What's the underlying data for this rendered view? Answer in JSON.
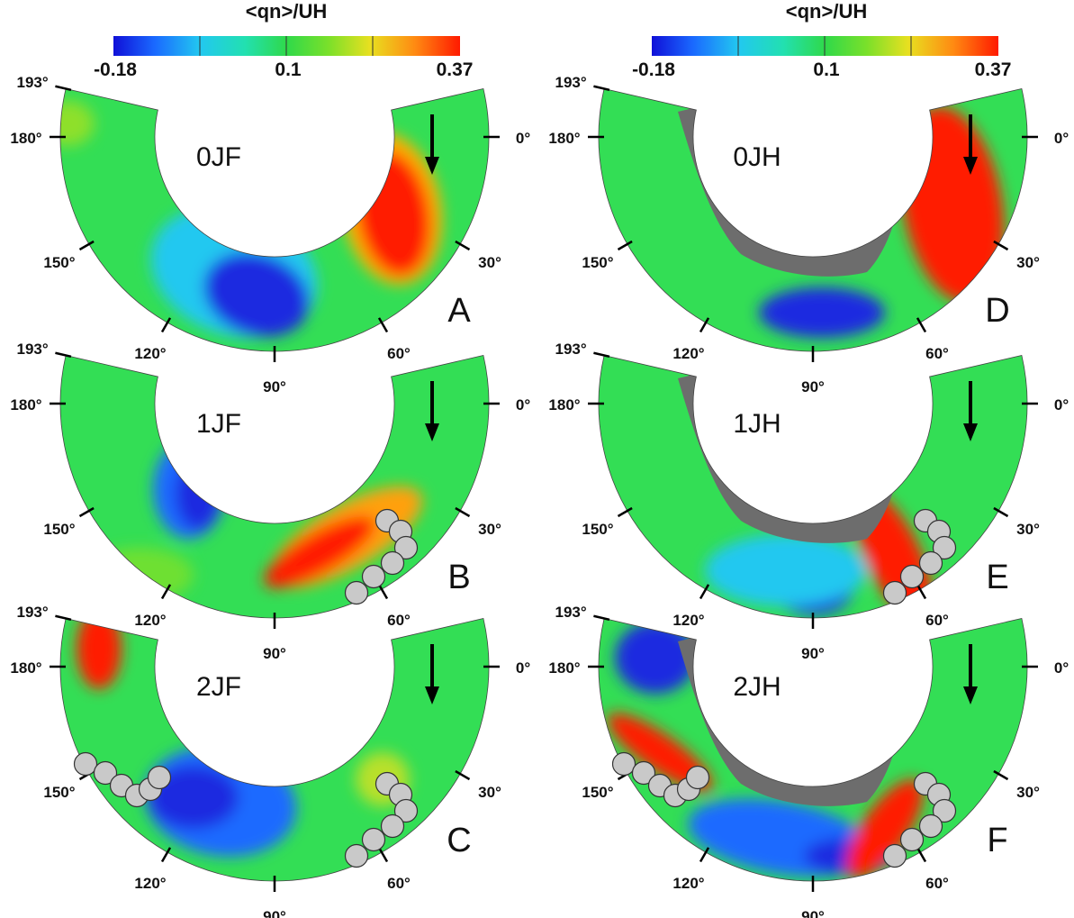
{
  "colorbar": {
    "title": "<qn>/UH",
    "min_label": "-0.18",
    "mid_label": "0.1",
    "max_label": "0.37",
    "stops": [
      "#1a1adc",
      "#1a7fff",
      "#22d8e8",
      "#1ddc6a",
      "#44dd22",
      "#bfe82a",
      "#f5d21c",
      "#ff6a10",
      "#ff1a00"
    ]
  },
  "angle_labels": {
    "a193": "193°",
    "a180": "180°",
    "a150": "150°",
    "a120": "120°",
    "a90": "90°",
    "a60": "60°",
    "a30": "30°",
    "a0": "0°"
  },
  "panels": [
    {
      "case": "0JF",
      "letter": "A"
    },
    {
      "case": "1JF",
      "letter": "B"
    },
    {
      "case": "2JF",
      "letter": "C"
    },
    {
      "case": "0JH",
      "letter": "D"
    },
    {
      "case": "1JH",
      "letter": "E"
    },
    {
      "case": "2JH",
      "letter": "F"
    }
  ],
  "colors": {
    "background_field": "#33de55",
    "strong_positive": "#ff1a00",
    "strong_negative": "#1a2ae0",
    "mask_region": "#6d6d6d",
    "marker_fill": "#c9c9c9"
  }
}
